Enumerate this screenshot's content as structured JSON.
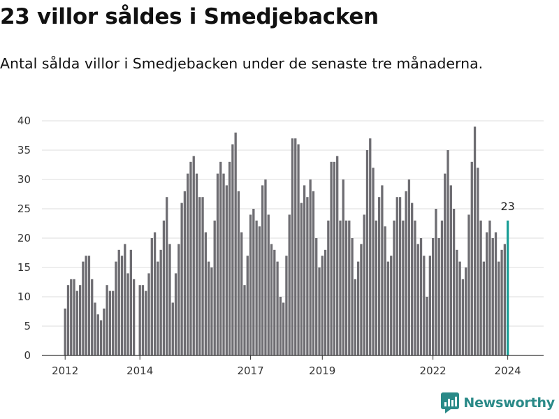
{
  "title": "23 villor såldes i Smedjebacken",
  "subtitle": "Antal sålda villor i Smedjebacken under de senaste tre månaderna.",
  "brand": {
    "name": "Newsworthy",
    "icon": "newsworthy-logo-icon",
    "color": "#2a8a88"
  },
  "chart_data": {
    "type": "bar",
    "title": "",
    "xlabel": "",
    "ylabel": "",
    "ylim": [
      0,
      40
    ],
    "yticks": [
      0,
      5,
      10,
      15,
      20,
      25,
      30,
      35,
      40
    ],
    "xtick_labels": [
      "2012",
      "2014",
      "2017",
      "2019",
      "2022",
      "2024"
    ],
    "grid": true,
    "bar_color": "#6e6d72",
    "highlight_color": "#1a9e96",
    "highlight_label": "23",
    "series": [
      {
        "values": [
          8,
          12,
          13,
          13,
          11,
          12,
          16,
          17,
          17,
          13,
          9,
          7,
          6,
          8,
          12,
          11,
          11,
          16,
          18,
          17,
          19,
          14,
          18,
          13,
          0,
          12,
          12,
          11,
          14,
          20,
          21,
          16,
          18,
          23,
          27,
          19,
          9,
          14,
          19,
          26,
          28,
          31,
          33,
          34,
          31,
          27,
          27,
          21,
          16,
          15,
          23,
          31,
          33,
          31,
          29,
          33,
          36,
          38,
          28,
          21,
          12,
          17,
          24,
          25,
          23,
          22,
          29,
          30,
          24,
          19,
          18,
          16,
          10,
          9,
          17,
          24,
          37,
          37,
          36,
          26,
          29,
          27,
          30,
          28,
          20,
          15,
          17,
          18,
          23,
          33,
          33,
          34,
          23,
          30,
          23,
          23,
          20,
          13,
          16,
          19,
          24,
          35,
          37,
          32,
          23,
          27,
          29,
          22,
          16,
          17,
          23,
          27,
          27,
          23,
          28,
          30,
          26,
          23,
          19,
          20,
          17,
          10,
          17,
          20,
          25,
          20,
          23,
          31,
          35,
          29,
          25,
          18,
          16,
          13,
          15,
          24,
          33,
          39,
          32,
          23,
          16,
          21,
          23,
          20,
          21,
          16,
          18,
          19,
          23
        ]
      }
    ]
  }
}
